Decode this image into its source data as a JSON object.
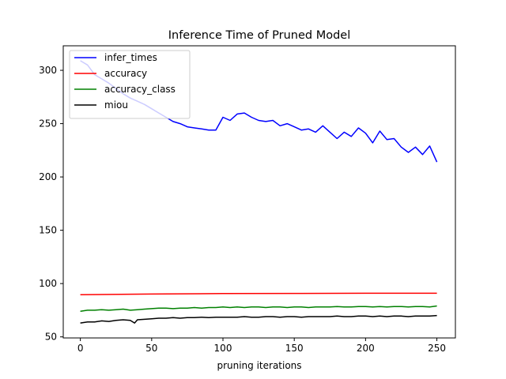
{
  "chart_data": {
    "type": "line",
    "title": "Inference Time of Pruned Model",
    "xlabel": "pruning iterations",
    "ylabel": "",
    "xlim": [
      -12,
      263
    ],
    "ylim": [
      49,
      323
    ],
    "xticks": [
      0,
      50,
      100,
      150,
      200,
      250
    ],
    "yticks": [
      50,
      100,
      150,
      200,
      250,
      300
    ],
    "grid": false,
    "legend_position": "top-left",
    "series": [
      {
        "name": "infer_times",
        "color": "#0000ff",
        "x": [
          0,
          5,
          10,
          15,
          20,
          25,
          30,
          35,
          40,
          45,
          50,
          55,
          60,
          65,
          70,
          75,
          80,
          85,
          90,
          95,
          100,
          105,
          110,
          115,
          120,
          125,
          130,
          135,
          140,
          145,
          150,
          155,
          160,
          165,
          170,
          175,
          180,
          185,
          190,
          195,
          200,
          205,
          210,
          215,
          220,
          225,
          230,
          235,
          240,
          245,
          250
        ],
        "values": [
          309,
          305,
          296,
          292,
          288,
          283,
          278,
          274,
          271,
          268,
          264,
          260,
          256,
          252,
          250,
          247,
          246,
          245,
          244,
          244,
          256,
          253,
          259,
          260,
          256,
          253,
          252,
          253,
          248,
          250,
          247,
          244,
          245,
          242,
          248,
          242,
          236,
          242,
          238,
          246,
          241,
          232,
          243,
          235,
          236,
          228,
          223,
          228,
          221,
          229,
          214
        ]
      },
      {
        "name": "accuracy",
        "color": "#ff0000",
        "x": [
          0,
          50,
          100,
          150,
          200,
          250
        ],
        "values": [
          89.5,
          90.2,
          90.6,
          90.8,
          90.9,
          90.9
        ]
      },
      {
        "name": "accuracy_class",
        "color": "#008000",
        "x": [
          0,
          5,
          10,
          15,
          20,
          25,
          30,
          35,
          40,
          45,
          50,
          55,
          60,
          65,
          70,
          75,
          80,
          85,
          90,
          95,
          100,
          105,
          110,
          115,
          120,
          125,
          130,
          135,
          140,
          145,
          150,
          155,
          160,
          165,
          170,
          175,
          180,
          185,
          190,
          195,
          200,
          205,
          210,
          215,
          220,
          225,
          230,
          235,
          240,
          245,
          250
        ],
        "values": [
          74,
          75,
          75,
          75.5,
          75,
          75.5,
          76,
          75,
          75.5,
          76,
          76.5,
          77,
          77,
          76.5,
          77,
          77,
          77.5,
          77,
          77.5,
          77.5,
          78,
          77.5,
          78,
          77.5,
          78,
          78,
          77.5,
          78,
          78,
          77.5,
          78,
          78,
          77.5,
          78,
          78,
          78,
          78.5,
          78,
          78,
          78.5,
          78.5,
          78,
          78.5,
          78,
          78.5,
          78.5,
          78,
          78.5,
          78.5,
          78,
          79
        ]
      },
      {
        "name": "miou",
        "color": "#000000",
        "x": [
          0,
          5,
          10,
          15,
          20,
          25,
          30,
          35,
          38,
          40,
          45,
          50,
          55,
          60,
          65,
          70,
          75,
          80,
          85,
          90,
          95,
          100,
          105,
          110,
          115,
          120,
          125,
          130,
          135,
          140,
          145,
          150,
          155,
          160,
          165,
          170,
          175,
          180,
          185,
          190,
          195,
          200,
          205,
          210,
          215,
          220,
          225,
          230,
          235,
          240,
          245,
          250
        ],
        "values": [
          63,
          64,
          64,
          65,
          64.5,
          65.5,
          66,
          65.5,
          63,
          66,
          66.5,
          67,
          67.5,
          67.5,
          68,
          67.5,
          68,
          68,
          68.5,
          68,
          68.5,
          68.5,
          68.5,
          68.5,
          69,
          68.5,
          68.5,
          69,
          69,
          68.5,
          69,
          69,
          68.5,
          69,
          69,
          69,
          69,
          69.5,
          69,
          69,
          69.5,
          69.5,
          69,
          69.5,
          69,
          69.5,
          69.5,
          69,
          69.5,
          69.5,
          69.5,
          70
        ]
      }
    ]
  }
}
